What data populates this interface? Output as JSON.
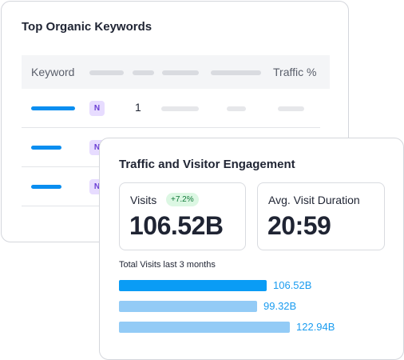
{
  "keywords_card": {
    "title": "Top Organic Keywords",
    "columns": {
      "keyword": "Keyword",
      "traffic": "Traffic %"
    },
    "rows": [
      {
        "intent": "N",
        "position": "1"
      },
      {
        "intent": "N",
        "position": ""
      },
      {
        "intent": "N",
        "position": ""
      }
    ]
  },
  "traffic_card": {
    "title": "Traffic and Visitor Engagement",
    "visits": {
      "label": "Visits",
      "delta": "+7.2%",
      "value": "106.52B"
    },
    "duration": {
      "label": "Avg. Visit Duration",
      "value": "20:59"
    },
    "subtitle": "Total Visits last 3 months",
    "bars": [
      {
        "value": 106.52,
        "label": "106.52B",
        "color": "#0a9cf5"
      },
      {
        "value": 99.32,
        "label": "99.32B",
        "color": "#93cbf6"
      },
      {
        "value": 122.94,
        "label": "122.94B",
        "color": "#93cbf6"
      }
    ]
  },
  "colors": {
    "accent": "#0a8ef0",
    "intent_badge_bg": "#e7dcff",
    "delta_badge_bg": "#dcf7e3"
  }
}
